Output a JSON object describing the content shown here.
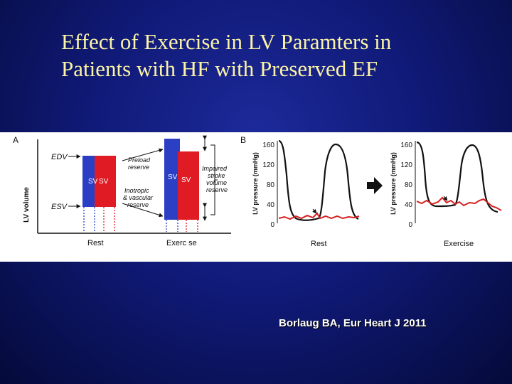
{
  "title": {
    "line1": "Effect of Exercise in LV Paramters in",
    "line2": "Patients with HF with Preserved EF"
  },
  "citation": "Borlaug BA, Eur Heart J 2011",
  "colors": {
    "title": "#fbf3a6",
    "sv_blue": "#2b3fc4",
    "sv_red": "#e01b24",
    "pressure_curve": "#111111",
    "ecg_curve": "#d42020"
  },
  "panel_a": {
    "letter": "A",
    "ylabel": "LV volume",
    "edv_label": "EDV",
    "esv_label": "ESV",
    "sv_label": "SV",
    "preload_line1": "Preload",
    "preload_line2": "reserve",
    "inotropic_line1": "Inotropic",
    "inotropic_line2": "& vascular",
    "inotropic_line3": "reserve",
    "impaired_line1": "Impaired",
    "impaired_line2": "stroke",
    "impaired_line3": "volume",
    "impaired_line4": "reserve",
    "rest_label": "Rest",
    "exercise_label": "Exerc se"
  },
  "panel_b": {
    "letter": "B",
    "ylabel": "LV pressure (mmHg)",
    "ticks": [
      "160",
      "120",
      "80",
      "40",
      "0"
    ],
    "rest_label": "Rest",
    "exercise_label": "Exercise"
  }
}
